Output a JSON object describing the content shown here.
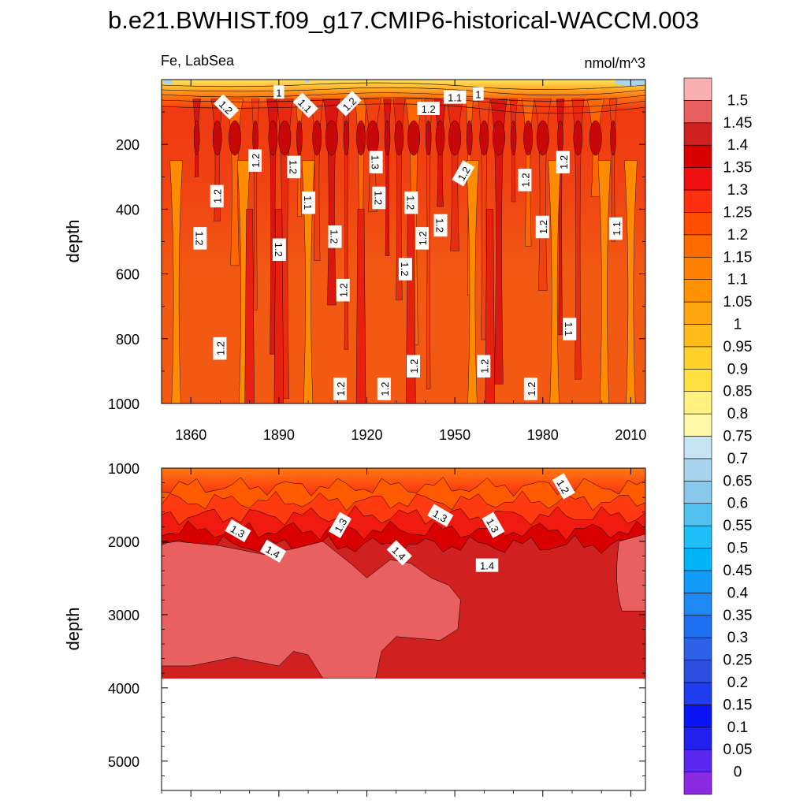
{
  "chart_data": {
    "type": "heatmap",
    "title": "b.e21.BWHIST.f09_g17.CMIP6-historical-WACCM.003",
    "subtitle_left": "Fe, LabSea",
    "units": "nmol/m^3",
    "ylabel": "depth",
    "xticks": [
      "1860",
      "1890",
      "1920",
      "1950",
      "1980",
      "2010"
    ],
    "xtick_values": [
      1860,
      1890,
      1920,
      1950,
      1980,
      2010
    ],
    "xlim": [
      1850,
      2015
    ],
    "upper_panel": {
      "ylim": [
        0,
        1000
      ],
      "yticks": [
        "200",
        "400",
        "600",
        "800",
        "1000"
      ],
      "ytick_values": [
        200,
        400,
        600,
        800,
        1000
      ],
      "contour_labels": [
        {
          "text": "1.2",
          "year": 1872,
          "depth": 85,
          "rot": 45
        },
        {
          "text": "1",
          "year": 1890,
          "depth": 40,
          "rot": 0
        },
        {
          "text": "1.1",
          "year": 1899,
          "depth": 80,
          "rot": 45
        },
        {
          "text": "1.2",
          "year": 1914,
          "depth": 75,
          "rot": -45
        },
        {
          "text": "1.2",
          "year": 1941,
          "depth": 90,
          "rot": 0
        },
        {
          "text": "1.1",
          "year": 1950,
          "depth": 55,
          "rot": 0
        },
        {
          "text": "1",
          "year": 1958,
          "depth": 45,
          "rot": 0
        },
        {
          "text": "1.2",
          "year": 1882,
          "depth": 250,
          "rot": -90
        },
        {
          "text": "1.2",
          "year": 1895,
          "depth": 270,
          "rot": 90
        },
        {
          "text": "1.3",
          "year": 1923,
          "depth": 255,
          "rot": 90
        },
        {
          "text": "1.2",
          "year": 1953,
          "depth": 290,
          "rot": -60
        },
        {
          "text": "1.2",
          "year": 1974,
          "depth": 310,
          "rot": -90
        },
        {
          "text": "1.2",
          "year": 1987,
          "depth": 255,
          "rot": -90
        },
        {
          "text": "1.2",
          "year": 1869,
          "depth": 360,
          "rot": -90
        },
        {
          "text": "1.2",
          "year": 1924,
          "depth": 365,
          "rot": 90
        },
        {
          "text": "1.2",
          "year": 1935,
          "depth": 380,
          "rot": 90
        },
        {
          "text": "1.1",
          "year": 1900,
          "depth": 380,
          "rot": 90
        },
        {
          "text": "1.2",
          "year": 1945,
          "depth": 450,
          "rot": 90
        },
        {
          "text": "1.2",
          "year": 1980,
          "depth": 455,
          "rot": -90
        },
        {
          "text": "1.1",
          "year": 2005,
          "depth": 460,
          "rot": -90
        },
        {
          "text": "1.2",
          "year": 1863,
          "depth": 490,
          "rot": 90
        },
        {
          "text": "1.2",
          "year": 1909,
          "depth": 485,
          "rot": 90
        },
        {
          "text": "1.2",
          "year": 1939,
          "depth": 490,
          "rot": -90
        },
        {
          "text": "1.2",
          "year": 1890,
          "depth": 525,
          "rot": 90
        },
        {
          "text": "1.2",
          "year": 1933,
          "depth": 585,
          "rot": 90
        },
        {
          "text": "1.2",
          "year": 1912,
          "depth": 650,
          "rot": -90
        },
        {
          "text": "1.1",
          "year": 1989,
          "depth": 770,
          "rot": 90
        },
        {
          "text": "1.2",
          "year": 1870,
          "depth": 830,
          "rot": -90
        },
        {
          "text": "1.2",
          "year": 1936,
          "depth": 885,
          "rot": -90
        },
        {
          "text": "1.2",
          "year": 1960,
          "depth": 885,
          "rot": -90
        },
        {
          "text": "1.2",
          "year": 1911,
          "depth": 955,
          "rot": -90
        },
        {
          "text": "1.2",
          "year": 1926,
          "depth": 955,
          "rot": -90
        },
        {
          "text": "1.2",
          "year": 1976,
          "depth": 955,
          "rot": -90
        }
      ]
    },
    "lower_panel": {
      "ylim": [
        1000,
        5400
      ],
      "yticks": [
        "1000",
        "2000",
        "3000",
        "4000",
        "5000"
      ],
      "ytick_values": [
        1000,
        2000,
        3000,
        4000,
        5000
      ],
      "bottom_of_data_depth": 3870,
      "contour_labels": [
        {
          "text": "1.2",
          "year": 1987,
          "depth": 1250,
          "rot": 60
        },
        {
          "text": "1.3",
          "year": 1945,
          "depth": 1650,
          "rot": 30
        },
        {
          "text": "1.3",
          "year": 1963,
          "depth": 1780,
          "rot": 60
        },
        {
          "text": "1.3",
          "year": 1911,
          "depth": 1780,
          "rot": -60
        },
        {
          "text": "1.3",
          "year": 1876,
          "depth": 1860,
          "rot": 30
        },
        {
          "text": "1.4",
          "year": 1888,
          "depth": 2140,
          "rot": 30
        },
        {
          "text": "1.4",
          "year": 1931,
          "depth": 2160,
          "rot": 45
        },
        {
          "text": "1.4",
          "year": 1961,
          "depth": 2330,
          "rot": 0
        }
      ]
    },
    "colorbar": {
      "levels": [
        "0",
        "0.05",
        "0.1",
        "0.15",
        "0.2",
        "0.25",
        "0.3",
        "0.35",
        "0.4",
        "0.45",
        "0.5",
        "0.55",
        "0.6",
        "0.65",
        "0.7",
        "0.75",
        "0.8",
        "0.85",
        "0.9",
        "0.95",
        "1",
        "1.05",
        "1.1",
        "1.15",
        "1.2",
        "1.25",
        "1.3",
        "1.35",
        "1.4",
        "1.45",
        "1.5"
      ],
      "colors": [
        "#8a2be2",
        "#5a28f0",
        "#2020f0",
        "#0a14f5",
        "#1e3cf0",
        "#2e4ee0",
        "#2f60e8",
        "#1e6ef0",
        "#1e88f5",
        "#109cf8",
        "#00b4f8",
        "#20bef8",
        "#50c0f0",
        "#88c8ea",
        "#a8d4ee",
        "#c8e4f2",
        "#fff8a8",
        "#fff080",
        "#ffe040",
        "#ffd02a",
        "#ffbc1a",
        "#ffa510",
        "#ff9100",
        "#ff8000",
        "#ff6a00",
        "#ff4e00",
        "#ff3010",
        "#f01010",
        "#d80000",
        "#d02020",
        "#e86060",
        "#f8b0b0"
      ]
    }
  }
}
